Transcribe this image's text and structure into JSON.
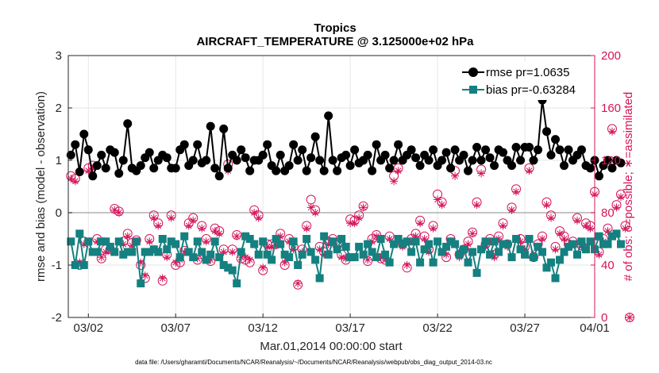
{
  "chart_data": {
    "type": "line",
    "title": "Tropics",
    "subtitle": "AIRCRAFT_TEMPERATURE @ 3.125000e+02 hPa",
    "xlabel": "Mar.01,2014 00:00:00 start",
    "ylabel_left": "rmse and bias (model - observation)",
    "ylabel_right": "# of obs: o=possible; ∗=assimilated",
    "footnote": "data file: /Users/gharamti/Documents/NCAR/Reanalysis/~/Documents/NCAR/Reanalysis/webpub/obs_diag_output_2014-03.nc",
    "xlim": [
      0.85,
      31.0
    ],
    "ylim_left": [
      -2,
      3
    ],
    "ylim_right": [
      0,
      200
    ],
    "x_ticks": [
      {
        "x": 2,
        "label": "03/02"
      },
      {
        "x": 7,
        "label": "03/07"
      },
      {
        "x": 12,
        "label": "03/12"
      },
      {
        "x": 17,
        "label": "03/17"
      },
      {
        "x": 22,
        "label": "03/22"
      },
      {
        "x": 27,
        "label": "03/27"
      },
      {
        "x": 31,
        "label": "04/01"
      }
    ],
    "y_ticks_left": [
      "-2",
      "-1",
      "0",
      "1",
      "2",
      "3"
    ],
    "y_ticks_right": [
      "0",
      "40",
      "80",
      "120",
      "160",
      "200"
    ],
    "zero_line": 0,
    "series": [
      {
        "name": "rmse",
        "legend": "rmse pr=1.0635",
        "color": "#000000",
        "marker": "circle",
        "axis": "left",
        "x_start": 1.0,
        "x_step": 0.25,
        "values": [
          1.1,
          1.3,
          0.78,
          1.5,
          1.2,
          0.7,
          0.9,
          1.1,
          0.85,
          1.2,
          1.15,
          0.75,
          1.0,
          1.7,
          0.85,
          0.8,
          0.9,
          1.05,
          1.15,
          0.85,
          1.0,
          1.1,
          1.05,
          0.85,
          0.85,
          1.2,
          1.3,
          0.9,
          1.0,
          1.3,
          0.95,
          1.0,
          1.65,
          0.85,
          0.7,
          1.6,
          0.85,
          1.1,
          1.0,
          1.2,
          1.05,
          0.8,
          1.0,
          1.0,
          1.1,
          1.3,
          0.9,
          0.8,
          1.1,
          0.8,
          0.9,
          1.3,
          1.0,
          1.2,
          0.8,
          1.05,
          1.45,
          1.0,
          0.8,
          1.85,
          1.0,
          0.8,
          1.05,
          1.1,
          0.9,
          1.2,
          0.95,
          1.0,
          1.1,
          0.8,
          1.3,
          1.0,
          1.1,
          0.85,
          1.0,
          1.3,
          1.0,
          1.1,
          1.2,
          1.05,
          0.9,
          1.1,
          1.0,
          1.2,
          0.9,
          1.0,
          1.15,
          0.85,
          1.2,
          1.0,
          1.1,
          0.8,
          1.0,
          1.25,
          1.0,
          1.2,
          1.05,
          0.9,
          1.2,
          1.15,
          1.0,
          0.9,
          1.25,
          1.0,
          1.25,
          1.25,
          1.0,
          1.2,
          2.15,
          1.55,
          1.1,
          1.4,
          1.2,
          0.9,
          1.2,
          1.0,
          1.1,
          1.2,
          0.9,
          0.85,
          1.0,
          0.7,
          0.9,
          1.0,
          0.85,
          1.0,
          0.95
        ]
      },
      {
        "name": "bias",
        "legend": "bias pr=-0.63284",
        "color": "#148080",
        "marker": "square",
        "axis": "left",
        "x_start": 1.0,
        "x_step": 0.25,
        "values": [
          -0.55,
          -1.0,
          -0.4,
          -1.0,
          -0.55,
          -0.75,
          -0.75,
          -0.55,
          -0.55,
          -0.65,
          -0.75,
          -0.55,
          -0.8,
          -0.75,
          -0.75,
          -0.55,
          -1.35,
          -0.75,
          -0.75,
          -0.7,
          -0.75,
          -0.5,
          -0.7,
          -0.55,
          -0.6,
          -0.85,
          -0.45,
          -0.75,
          -0.85,
          -0.55,
          -0.75,
          -0.9,
          -0.8,
          -0.55,
          -0.85,
          -1.0,
          -1.05,
          -1.1,
          -1.35,
          -0.75,
          -0.45,
          -0.5,
          -0.6,
          -0.8,
          -0.55,
          -0.8,
          -0.9,
          -0.5,
          -0.6,
          -0.8,
          -0.85,
          -0.55,
          -1.0,
          -0.8,
          -0.5,
          -0.75,
          -0.9,
          -1.25,
          -0.45,
          -0.8,
          -0.55,
          -0.7,
          -0.5,
          -0.65,
          -0.85,
          -0.85,
          -0.65,
          -0.8,
          -0.6,
          -0.75,
          -0.85,
          -0.5,
          -0.8,
          -0.95,
          -0.6,
          -0.5,
          -0.6,
          -0.55,
          -0.75,
          -0.55,
          -0.95,
          -0.7,
          -0.6,
          -0.95,
          -0.55,
          -0.75,
          -0.65,
          -0.55,
          -0.6,
          -0.8,
          -0.7,
          -0.95,
          -0.75,
          -1.15,
          -0.7,
          -0.55,
          -0.8,
          -0.55,
          -0.75,
          -0.6,
          -0.6,
          -0.85,
          -0.5,
          -0.7,
          -0.8,
          -0.5,
          -0.85,
          -0.65,
          -0.75,
          -1.05,
          -0.95,
          -1.25,
          -0.9,
          -0.75,
          -0.65,
          -0.6,
          -0.8,
          -0.55,
          -0.7,
          -0.55,
          -0.7,
          -0.45,
          -0.6,
          -0.6,
          -0.45,
          -0.4,
          -0.6
        ]
      },
      {
        "name": "possible",
        "legend": "",
        "color": "#d4145a",
        "marker": "open-circle",
        "axis": "right",
        "x_start": 1.0,
        "x_step": 0.25,
        "values": [
          108,
          106,
          40,
          58,
          114,
          116,
          60,
          45,
          52,
          52,
          83,
          81,
          58,
          64,
          57,
          59,
          40,
          30,
          60,
          78,
          72,
          28,
          48,
          78,
          40,
          42,
          51,
          72,
          76,
          44,
          70,
          60,
          43,
          68,
          66,
          52,
          117,
          52,
          63,
          45,
          44,
          42,
          82,
          78,
          36,
          56,
          56,
          56,
          64,
          40,
          60,
          54,
          25,
          52,
          70,
          90,
          82,
          54,
          50,
          58,
          60,
          55,
          48,
          44,
          75,
          74,
          78,
          85,
          43,
          60,
          63,
          45,
          44,
          62,
          108,
          114,
          56,
          38,
          60,
          64,
          74,
          62,
          52,
          70,
          94,
          88,
          46,
          60,
          112,
          48,
          52,
          58,
          65,
          88,
          113,
          56,
          60,
          48,
          62,
          72,
          56,
          84,
          98,
          60,
          54,
          114,
          46,
          56,
          62,
          88,
          78,
          54,
          66,
          62,
          56,
          58,
          76,
          55,
          72,
          70,
          96,
          50,
          60,
          68,
          144,
          86,
          94,
          70,
          0
        ]
      },
      {
        "name": "assimilated",
        "legend": "",
        "color": "#d4145a",
        "marker": "asterisk",
        "axis": "right",
        "x_start": 1.0,
        "x_step": 0.25,
        "values": [
          106,
          104,
          42,
          56,
          112,
          114,
          58,
          46,
          50,
          52,
          82,
          80,
          56,
          62,
          55,
          58,
          42,
          32,
          58,
          76,
          70,
          30,
          46,
          76,
          42,
          44,
          50,
          70,
          74,
          45,
          68,
          58,
          44,
          66,
          64,
          50,
          112,
          50,
          62,
          46,
          46,
          44,
          80,
          76,
          38,
          54,
          54,
          55,
          62,
          42,
          58,
          52,
          26,
          50,
          68,
          84,
          80,
          52,
          48,
          56,
          58,
          54,
          46,
          45,
          72,
          72,
          76,
          84,
          44,
          58,
          62,
          46,
          45,
          60,
          104,
          112,
          54,
          40,
          58,
          62,
          72,
          60,
          50,
          68,
          90,
          86,
          48,
          58,
          108,
          46,
          50,
          56,
          64,
          86,
          110,
          54,
          58,
          46,
          60,
          70,
          54,
          82,
          96,
          58,
          52,
          112,
          48,
          54,
          60,
          86,
          76,
          52,
          64,
          60,
          54,
          56,
          74,
          54,
          70,
          68,
          94,
          48,
          58,
          66,
          142,
          84,
          92,
          68,
          0
        ]
      }
    ]
  }
}
